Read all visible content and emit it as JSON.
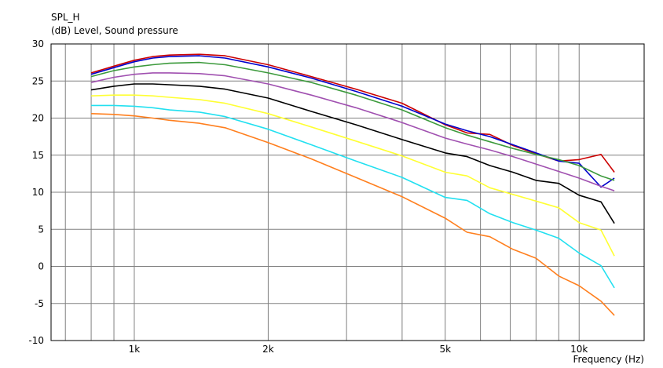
{
  "chart_data": {
    "type": "line",
    "title": "SPL_H",
    "subtitle": "(dB)  Level, Sound pressure",
    "xlabel": "Frequency  (Hz)",
    "ylabel": "",
    "x_scale": "log",
    "xlim": [
      650,
      14000
    ],
    "ylim": [
      -10,
      30
    ],
    "grid": true,
    "y_ticks": [
      -10,
      -5,
      0,
      5,
      10,
      15,
      20,
      25,
      30
    ],
    "y_tick_labels": [
      "-10",
      "-5",
      "0",
      "5",
      "10",
      "15",
      "20",
      "25",
      "30"
    ],
    "x_ticks": [
      1000,
      2000,
      5000,
      10000
    ],
    "x_tick_labels": [
      "1k",
      "2k",
      "5k",
      "10k"
    ],
    "x_minor_grid": [
      700,
      800,
      900,
      1000,
      2000,
      3000,
      4000,
      5000,
      6000,
      7000,
      8000,
      9000,
      10000
    ],
    "series": [
      {
        "color": "#cc0000",
        "x": [
          800,
          900,
          1000,
          1100,
          1200,
          1400,
          1600,
          2000,
          2500,
          3150,
          4000,
          5000,
          5600,
          6300,
          7100,
          8000,
          9000,
          10000,
          11200,
          12000
        ],
        "y": [
          26.1,
          27.0,
          27.8,
          28.3,
          28.5,
          28.6,
          28.4,
          27.2,
          25.6,
          23.9,
          22.0,
          19.1,
          18.0,
          17.8,
          16.3,
          15.2,
          14.2,
          14.4,
          15.1,
          12.7
        ]
      },
      {
        "color": "#0000cc",
        "x": [
          800,
          900,
          1000,
          1100,
          1200,
          1400,
          1600,
          2000,
          2500,
          3150,
          4000,
          5000,
          5600,
          6300,
          7100,
          8000,
          9000,
          10000,
          11200,
          12000
        ],
        "y": [
          25.9,
          26.8,
          27.6,
          28.1,
          28.3,
          28.4,
          28.1,
          26.9,
          25.4,
          23.6,
          21.6,
          19.2,
          18.3,
          17.5,
          16.4,
          15.3,
          14.2,
          13.9,
          10.7,
          11.9
        ]
      },
      {
        "color": "#3c9a3c",
        "x": [
          800,
          900,
          1000,
          1100,
          1200,
          1400,
          1600,
          2000,
          2500,
          3150,
          4000,
          5000,
          5600,
          6300,
          7100,
          8000,
          9000,
          10000,
          11200,
          12000
        ],
        "y": [
          25.6,
          26.4,
          26.9,
          27.2,
          27.4,
          27.5,
          27.2,
          26.1,
          24.8,
          23.1,
          21.1,
          18.7,
          17.7,
          16.8,
          15.9,
          15.1,
          14.4,
          13.6,
          12.2,
          11.6
        ]
      },
      {
        "color": "#a050b0",
        "x": [
          800,
          900,
          1000,
          1100,
          1200,
          1400,
          1600,
          2000,
          2500,
          3150,
          4000,
          5000,
          5600,
          6300,
          7100,
          8000,
          9000,
          10000,
          11200,
          12000
        ],
        "y": [
          24.8,
          25.5,
          25.9,
          26.1,
          26.1,
          26.0,
          25.7,
          24.6,
          23.1,
          21.4,
          19.4,
          17.3,
          16.5,
          15.7,
          14.8,
          13.8,
          12.8,
          11.9,
          10.8,
          10.2
        ]
      },
      {
        "color": "#000000",
        "x": [
          800,
          900,
          1000,
          1100,
          1200,
          1400,
          1600,
          2000,
          2500,
          3150,
          4000,
          5000,
          5600,
          6300,
          7100,
          8000,
          9000,
          10000,
          11200,
          12000
        ],
        "y": [
          23.8,
          24.3,
          24.6,
          24.6,
          24.5,
          24.3,
          23.9,
          22.7,
          20.9,
          19.1,
          17.1,
          15.3,
          14.8,
          13.6,
          12.7,
          11.6,
          11.2,
          9.6,
          8.7,
          5.8
        ]
      },
      {
        "color": "#ffff33",
        "x": [
          800,
          900,
          1000,
          1100,
          1200,
          1400,
          1600,
          2000,
          2500,
          3150,
          4000,
          5000,
          5600,
          6300,
          7100,
          8000,
          9000,
          10000,
          11200,
          12000
        ],
        "y": [
          23.0,
          23.1,
          23.1,
          23.0,
          22.8,
          22.5,
          22.0,
          20.6,
          18.8,
          16.9,
          14.9,
          12.7,
          12.2,
          10.6,
          9.7,
          8.8,
          7.9,
          5.9,
          4.9,
          1.4
        ]
      },
      {
        "color": "#22e0f0",
        "x": [
          800,
          900,
          1000,
          1100,
          1200,
          1400,
          1600,
          2000,
          2500,
          3150,
          4000,
          5000,
          5600,
          6300,
          7100,
          8000,
          9000,
          10000,
          11200,
          12000
        ],
        "y": [
          21.7,
          21.7,
          21.6,
          21.4,
          21.1,
          20.8,
          20.2,
          18.5,
          16.4,
          14.2,
          12.0,
          9.3,
          8.9,
          7.1,
          5.9,
          4.9,
          3.8,
          1.8,
          0.1,
          -2.9
        ]
      },
      {
        "color": "#ff7f1e",
        "x": [
          800,
          900,
          1000,
          1100,
          1200,
          1400,
          1600,
          2000,
          2500,
          3150,
          4000,
          5000,
          5600,
          6300,
          7100,
          8000,
          9000,
          10000,
          11200,
          12000
        ],
        "y": [
          20.6,
          20.5,
          20.3,
          20.0,
          19.7,
          19.3,
          18.7,
          16.7,
          14.5,
          12.0,
          9.4,
          6.5,
          4.6,
          4.0,
          2.3,
          1.1,
          -1.3,
          -2.6,
          -4.7,
          -6.6
        ]
      }
    ]
  }
}
